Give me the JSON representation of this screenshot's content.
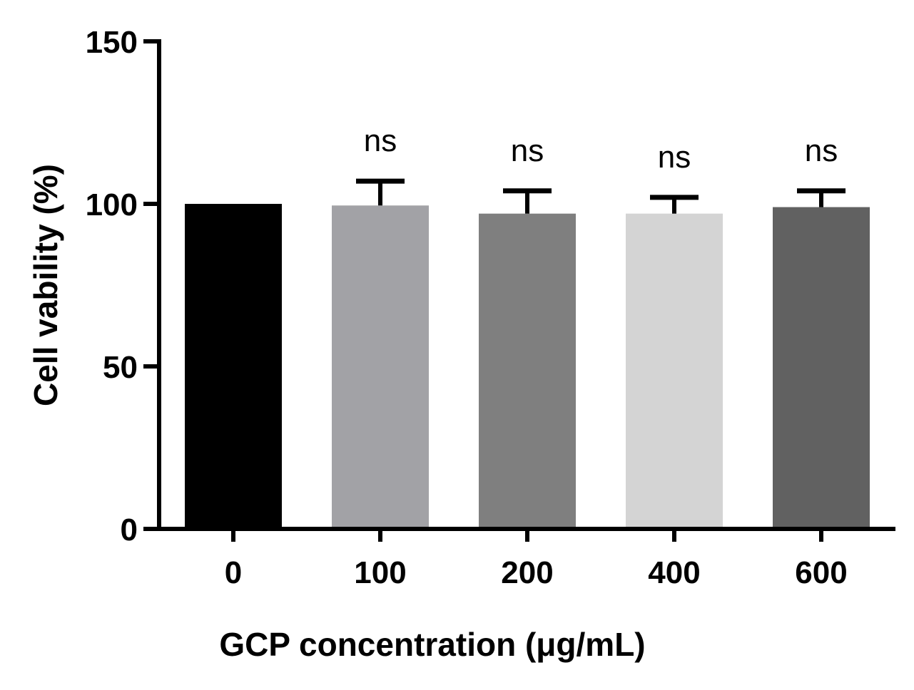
{
  "chart_data": {
    "type": "bar",
    "title": "",
    "xlabel": "GCP concentration (μg/mL)",
    "ylabel": "Cell vability (%)",
    "categories": [
      "0",
      "100",
      "200",
      "400",
      "600"
    ],
    "values": [
      100,
      99.5,
      97,
      97,
      99
    ],
    "errors": [
      0,
      7.5,
      7,
      5,
      5
    ],
    "annotations": [
      "",
      "ns",
      "ns",
      "ns",
      "ns"
    ],
    "bar_colors": [
      "#000000",
      "#a2a2a6",
      "#7f7f7f",
      "#d4d4d4",
      "#616161"
    ],
    "ylim": [
      0,
      150
    ],
    "yticks": [
      "0",
      "50",
      "100",
      "150"
    ],
    "grid": false,
    "legend": "none"
  }
}
